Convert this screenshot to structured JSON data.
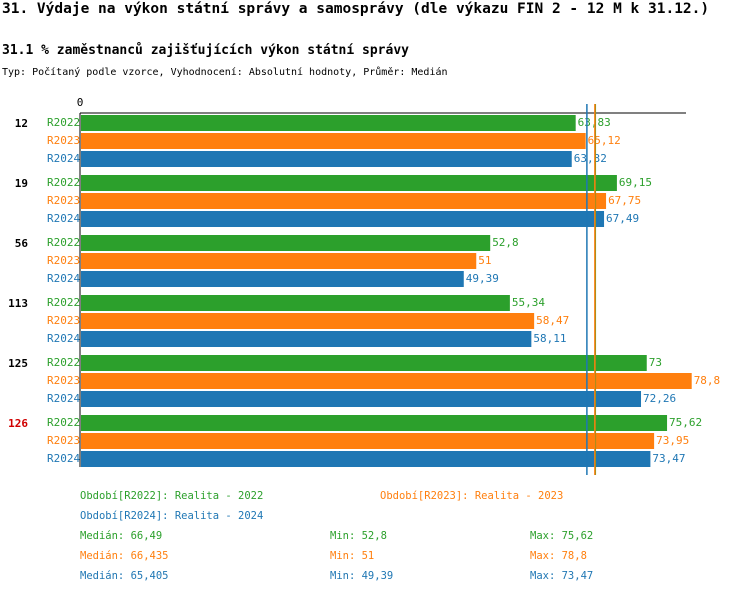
{
  "page": {
    "title": "31. Výdaje na výkon státní správy a samosprávy (dle výkazu FIN 2 - 12 M k 31.12.)",
    "subtitle": "31.1 % zaměstnanců zajišťujících výkon státní správy",
    "type_line": "Typ: Počítaný podle vzorce, Vyhodnocení: Absolutní hodnoty, Průměr: Medián"
  },
  "colors": {
    "R2022": "#2ca02c",
    "R2023": "#ff7f0e",
    "R2024": "#1f77b4",
    "highlight": "#d00000"
  },
  "chart_data": {
    "type": "bar",
    "orientation": "horizontal",
    "axis_zero_label": "0",
    "xlim": [
      0,
      82
    ],
    "categories": [
      "12",
      "19",
      "56",
      "113",
      "125",
      "126"
    ],
    "highlighted_category": "126",
    "series": [
      {
        "name": "R2022",
        "values": [
          63.83,
          69.15,
          52.8,
          55.34,
          73,
          75.62
        ],
        "value_labels": [
          "63,83",
          "69,15",
          "52,8",
          "55,34",
          "73",
          "75,62"
        ]
      },
      {
        "name": "R2023",
        "values": [
          65.12,
          67.75,
          51,
          58.47,
          78.8,
          73.95
        ],
        "value_labels": [
          "65,12",
          "67,75",
          "51",
          "58,47",
          "78,8",
          "73,95"
        ]
      },
      {
        "name": "R2024",
        "values": [
          63.32,
          67.49,
          49.39,
          58.11,
          72.26,
          73.47
        ],
        "value_labels": [
          "63,32",
          "67,49",
          "49,39",
          "58,11",
          "72,26",
          "73,47"
        ]
      }
    ],
    "median_lines": [
      {
        "series": "R2022",
        "value": 66.49
      },
      {
        "series": "R2023",
        "value": 66.435
      },
      {
        "series": "R2024",
        "value": 65.405
      }
    ]
  },
  "legend": {
    "r2022": "Období[R2022]: Realita - 2022",
    "r2023": "Období[R2023]: Realita - 2023",
    "r2024": "Období[R2024]: Realita - 2024"
  },
  "stats": {
    "r2022": {
      "median": "Medián: 66,49",
      "min": "Min: 52,8",
      "max": "Max: 75,62"
    },
    "r2023": {
      "median": "Medián: 66,435",
      "min": "Min: 51",
      "max": "Max: 78,8"
    },
    "r2024": {
      "median": "Medián: 65,405",
      "min": "Min: 49,39",
      "max": "Max: 73,47"
    }
  }
}
